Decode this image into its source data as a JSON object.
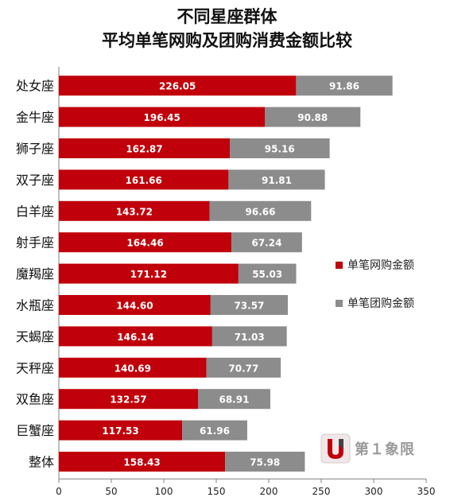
{
  "title": {
    "line1": "不同星座群体",
    "line2": "平均单笔网购及团购消费金额比较"
  },
  "colors": {
    "online": "#c0000a",
    "group": "#8c8c8c",
    "axis": "#808080"
  },
  "legend": {
    "online_label": "单笔网购金额",
    "group_label": "单笔团购金额"
  },
  "logo": {
    "text": "第１象限"
  },
  "chart_data": {
    "type": "bar",
    "orientation": "horizontal",
    "stacked": true,
    "categories": [
      "处女座",
      "金牛座",
      "狮子座",
      "双子座",
      "白羊座",
      "射手座",
      "魔羯座",
      "水瓶座",
      "天蝎座",
      "天秤座",
      "双鱼座",
      "巨蟹座",
      "整体"
    ],
    "series": [
      {
        "name": "单笔网购金额",
        "color": "#c0000a",
        "values": [
          226.05,
          196.45,
          162.87,
          161.66,
          143.72,
          164.46,
          171.12,
          144.6,
          146.14,
          140.69,
          132.57,
          117.53,
          158.43
        ],
        "labels": [
          "226.05",
          "196.45",
          "162.87",
          "161.66",
          "143.72",
          "164.46",
          "171.12",
          "144.60",
          "146.14",
          "140.69",
          "132.57",
          "117.53",
          "158.43"
        ]
      },
      {
        "name": "单笔团购金额",
        "color": "#8c8c8c",
        "values": [
          91.86,
          90.88,
          95.16,
          91.81,
          96.66,
          67.24,
          55.03,
          73.57,
          71.03,
          70.77,
          68.91,
          61.96,
          75.98
        ],
        "labels": [
          "91.86",
          "90.88",
          "95.16",
          "91.81",
          "96.66",
          "67.24",
          "55.03",
          "73.57",
          "71.03",
          "70.77",
          "68.91",
          "61.96",
          "75.98"
        ]
      }
    ],
    "xlim": [
      0,
      350
    ],
    "xticks": [
      0,
      50,
      100,
      150,
      200,
      250,
      300,
      350
    ],
    "grid": false,
    "legend_position": "right"
  }
}
